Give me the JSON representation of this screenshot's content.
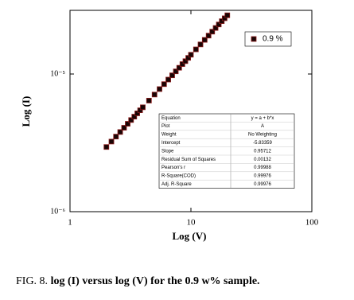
{
  "chart_data": {
    "type": "scatter",
    "xlabel": "Log (V)",
    "ylabel": "Log (I)",
    "caption_label": "FIG. 8.",
    "caption_text": "log (I) versus log (V) for the 0.9 w% sample.",
    "xscale": "log",
    "yscale": "log",
    "xlim": [
      1,
      100
    ],
    "ylim": [
      1e-06,
      2.9e-05
    ],
    "xticks": [
      1,
      10,
      100
    ],
    "yticks": [
      {
        "value": 1e-06,
        "label": "10⁻⁶"
      },
      {
        "value": 1e-05,
        "label": "10⁻⁵"
      }
    ],
    "legend": "upper right",
    "series": [
      {
        "name": "0.9 %",
        "color": "#1a0505",
        "edgecolor": "#8b1a1a",
        "x": [
          2,
          2.2,
          2.4,
          2.6,
          2.8,
          3,
          3.2,
          3.4,
          3.6,
          3.8,
          4,
          4.5,
          5,
          5.5,
          6,
          6.5,
          7,
          7.5,
          8,
          8.5,
          9,
          9.5,
          10,
          11,
          12,
          13,
          14,
          15,
          16,
          17,
          18,
          19,
          20
        ],
        "values": [
          2.95e-06,
          3.23e-06,
          3.51e-06,
          3.79e-06,
          4.07e-06,
          4.35e-06,
          4.63e-06,
          4.9e-06,
          5.18e-06,
          5.45e-06,
          5.73e-06,
          6.41e-06,
          7.09e-06,
          7.77e-06,
          8.44e-06,
          9.11e-06,
          9.78e-06,
          1.045e-05,
          1.11e-05,
          1.18e-05,
          1.24e-05,
          1.31e-05,
          1.38e-05,
          1.51e-05,
          1.64e-05,
          1.77e-05,
          1.9e-05,
          2.03e-05,
          2.16e-05,
          2.29e-05,
          2.42e-05,
          2.54e-05,
          2.67e-05
        ]
      }
    ],
    "fit_table": {
      "rows": [
        [
          "Equation",
          "y = a + b*x"
        ],
        [
          "Plot",
          "A"
        ],
        [
          "Weight",
          "No Weighting"
        ],
        [
          "Intercept",
          "-5.83359"
        ],
        [
          "Slope",
          "0.95712"
        ],
        [
          "Residual Sum of Squares",
          "0.00132"
        ],
        [
          "Pearson's r",
          "0.99988"
        ],
        [
          "R-Square(COD)",
          "0.99976"
        ],
        [
          "Adj. R-Square",
          "0.99976"
        ]
      ]
    }
  }
}
